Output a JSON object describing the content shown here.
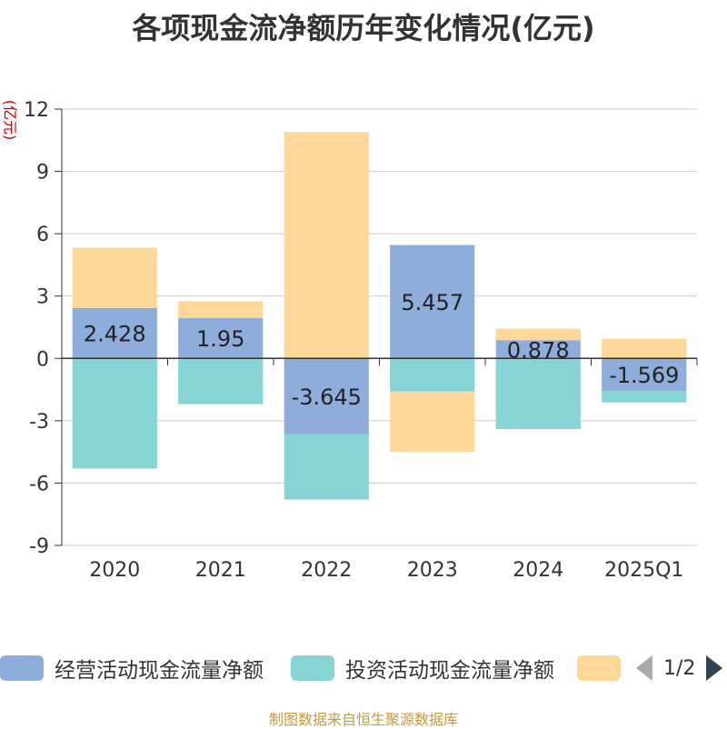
{
  "chart_data": {
    "type": "bar",
    "stacked": true,
    "title": "各项现金流净额历年变化情况(亿元)",
    "ylabel": "(亿元)",
    "categories": [
      "2020",
      "2021",
      "2022",
      "2023",
      "2024",
      "2025Q1"
    ],
    "ylim": [
      -9,
      12
    ],
    "yticks": [
      12,
      9,
      6,
      3,
      0,
      -3,
      -6,
      -9
    ],
    "series": [
      {
        "name": "经营活动现金流量净额",
        "color": "#8eaddb",
        "values": [
          2.428,
          1.95,
          -3.645,
          5.457,
          0.878,
          -1.569
        ],
        "labels": [
          "2.428",
          "1.95",
          "-3.645",
          "5.457",
          "0.878",
          "-1.569"
        ]
      },
      {
        "name": "投资活动现金流量净额",
        "color": "#86d4d6",
        "values": [
          -5.3,
          -2.2,
          -3.15,
          -1.6,
          -3.4,
          -0.55
        ]
      },
      {
        "name": "",
        "color": "#ffd899",
        "values": [
          2.9,
          0.8,
          10.9,
          -2.9,
          0.55,
          0.95
        ]
      }
    ],
    "grid": true,
    "legend": "bottom"
  },
  "legend": {
    "items": [
      "经营活动现金流量净额",
      "投资活动现金流量净额",
      ""
    ],
    "page": "1/2"
  },
  "source": "制图数据来自恒生聚源数据库"
}
